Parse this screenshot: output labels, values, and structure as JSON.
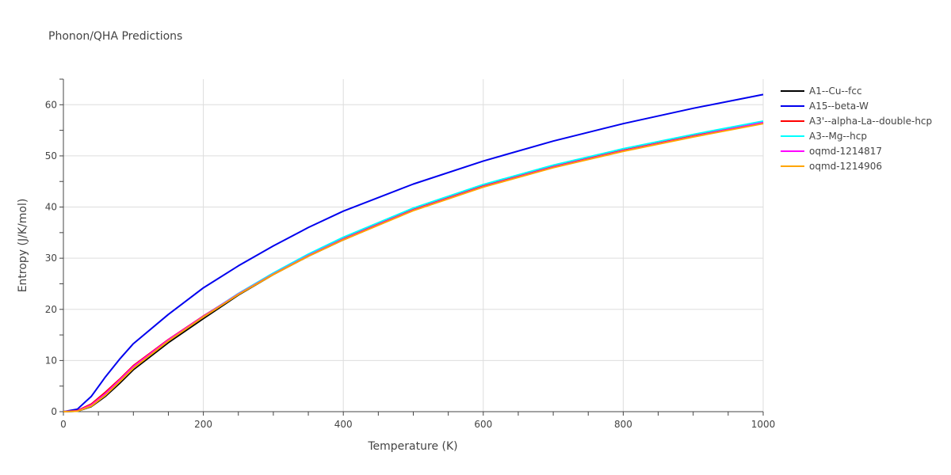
{
  "chart_data": {
    "type": "line",
    "title": "Phonon/QHA Predictions",
    "xlabel": "Temperature (K)",
    "ylabel": "Entropy (J/K/mol)",
    "xlim": [
      0,
      1000
    ],
    "ylim": [
      0,
      65
    ],
    "xticks": [
      0,
      200,
      400,
      600,
      800,
      1000
    ],
    "yticks": [
      0,
      10,
      20,
      30,
      40,
      50,
      60
    ],
    "grid": true,
    "legend_position": "top-right",
    "x": [
      0,
      20,
      40,
      60,
      80,
      100,
      150,
      200,
      250,
      300,
      350,
      400,
      500,
      600,
      700,
      800,
      900,
      1000
    ],
    "series": [
      {
        "name": "A1--Cu--fcc",
        "color": "#000000",
        "values": [
          0,
          0.1,
          1.0,
          3.0,
          5.5,
          8.2,
          13.5,
          18.2,
          22.8,
          26.8,
          30.4,
          33.6,
          39.4,
          44.0,
          47.8,
          51.0,
          53.8,
          56.4
        ]
      },
      {
        "name": "A15--beta-W",
        "color": "#0000ee",
        "values": [
          0,
          0.5,
          3.0,
          6.8,
          10.2,
          13.3,
          19.0,
          24.2,
          28.5,
          32.4,
          36.0,
          39.2,
          44.5,
          49.0,
          52.9,
          56.3,
          59.3,
          62.0
        ]
      },
      {
        "name": "A3'--alpha-La--double-hcp",
        "color": "#ff0000",
        "values": [
          0,
          0.2,
          1.5,
          3.8,
          6.3,
          9.0,
          14.1,
          18.7,
          23.0,
          27.0,
          30.6,
          33.8,
          39.5,
          44.1,
          47.9,
          51.1,
          53.9,
          56.6
        ]
      },
      {
        "name": "A3--Mg--hcp",
        "color": "#00ffff",
        "values": [
          0,
          0.1,
          1.2,
          3.3,
          5.9,
          8.6,
          13.9,
          18.6,
          23.1,
          27.1,
          30.8,
          34.1,
          39.8,
          44.4,
          48.2,
          51.4,
          54.2,
          56.8
        ]
      },
      {
        "name": "oqmd-1214817",
        "color": "#ff00ff",
        "values": [
          0,
          0.15,
          1.3,
          3.5,
          6.1,
          8.8,
          14.0,
          18.6,
          23.0,
          26.9,
          30.5,
          33.7,
          39.4,
          44.0,
          47.8,
          51.0,
          53.8,
          56.5
        ]
      },
      {
        "name": "oqmd-1214906",
        "color": "#ffa500",
        "values": [
          0,
          0.1,
          1.1,
          3.2,
          5.8,
          8.5,
          13.8,
          18.5,
          22.9,
          26.8,
          30.4,
          33.6,
          39.3,
          43.9,
          47.7,
          50.9,
          53.7,
          56.3
        ]
      }
    ]
  }
}
